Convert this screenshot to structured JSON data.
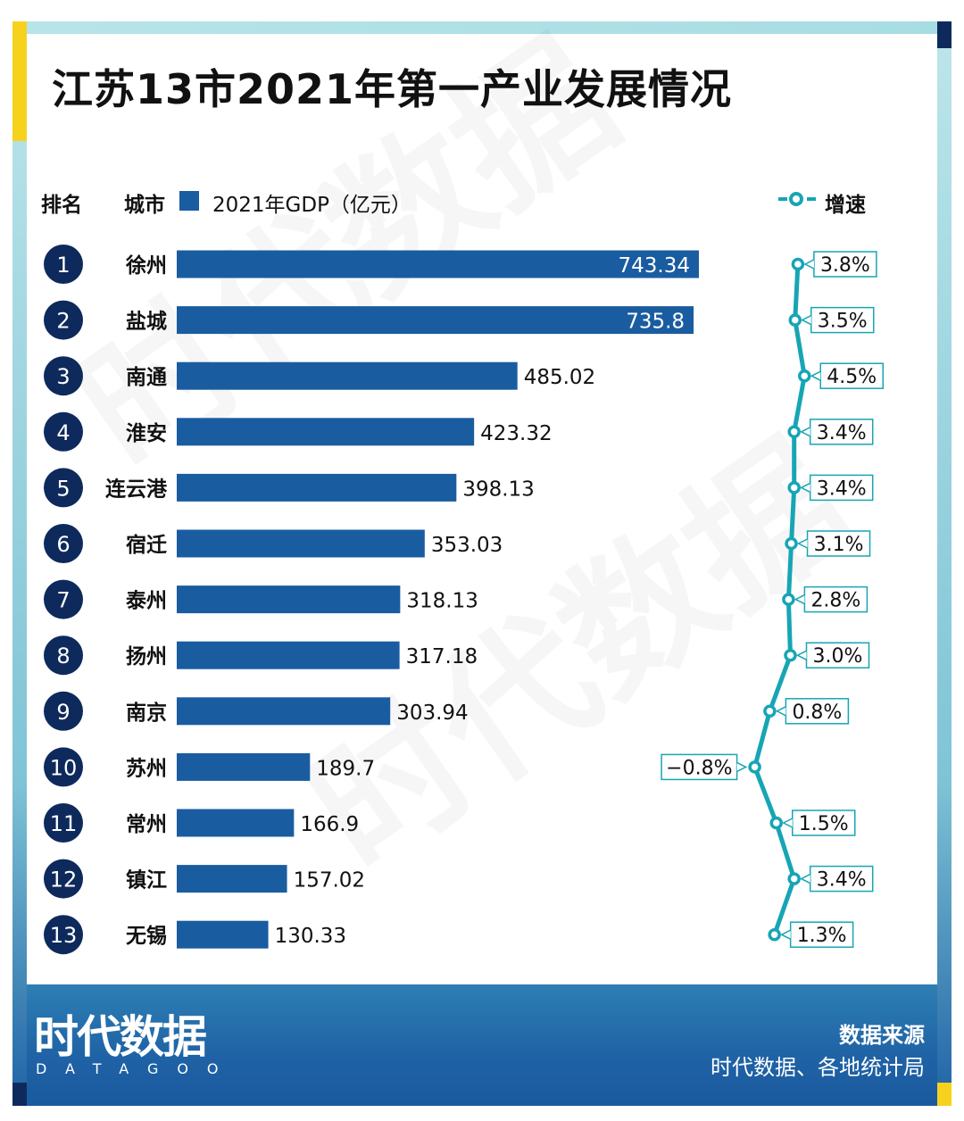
{
  "title": "江苏13市2021年第一产业发展情况",
  "header": {
    "rank_label": "排名",
    "city_label": "城市",
    "gdp_legend": "2021年GDP（亿元）",
    "growth_legend": "增速"
  },
  "colors": {
    "bar": "#1a5ca0",
    "line": "#17a5b5",
    "badge": "#0e2a5c"
  },
  "chart_data": {
    "type": "bar",
    "title": "江苏13市2021年第一产业发展情况",
    "orientation": "horizontal",
    "ranks": [
      "1",
      "2",
      "3",
      "4",
      "5",
      "6",
      "7",
      "8",
      "9",
      "10",
      "11",
      "12",
      "13"
    ],
    "categories": [
      "徐州",
      "盐城",
      "南通",
      "淮安",
      "连云港",
      "宿迁",
      "泰州",
      "扬州",
      "南京",
      "苏州",
      "常州",
      "镇江",
      "无锡"
    ],
    "series": [
      {
        "name": "2021年GDP（亿元）",
        "values": [
          743.34,
          735.8,
          485.02,
          423.32,
          398.13,
          353.03,
          318.13,
          317.18,
          303.94,
          189.7,
          166.9,
          157.02,
          130.33
        ]
      },
      {
        "name": "增速",
        "type": "line",
        "values": [
          3.8,
          3.5,
          4.5,
          3.4,
          3.4,
          3.1,
          2.8,
          3.0,
          0.8,
          -0.8,
          1.5,
          3.4,
          1.3
        ]
      }
    ],
    "value_labels": [
      "743.34",
      "735.8",
      "485.02",
      "423.32",
      "398.13",
      "353.03",
      "318.13",
      "317.18",
      "303.94",
      "189.7",
      "166.9",
      "157.02",
      "130.33"
    ],
    "growth_labels": [
      "3.8%",
      "3.5%",
      "4.5%",
      "3.4%",
      "3.4%",
      "3.1%",
      "2.8%",
      "3.0%",
      "0.8%",
      "−0.8%",
      "1.5%",
      "3.4%",
      "1.3%"
    ]
  },
  "footer": {
    "brand": "时代数据",
    "brand_sub": "DATAGOO",
    "source_title": "数据来源",
    "source_text": "时代数据、各地统计局"
  }
}
